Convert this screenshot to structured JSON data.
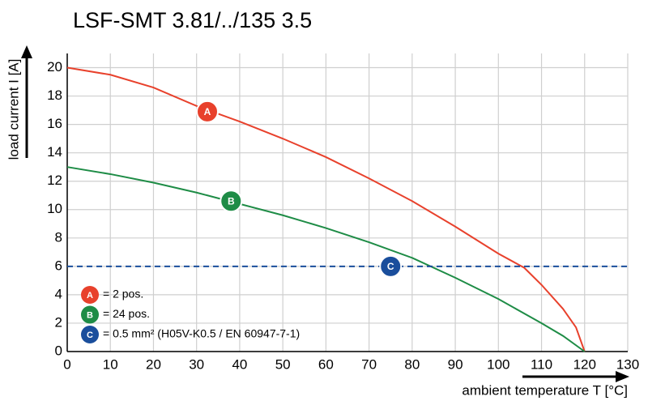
{
  "chart_data": {
    "type": "line",
    "title": "LSF-SMT 3.81/../135 3.5",
    "y_label": "load current I [A]",
    "x_label": "ambient temperature T [°C]",
    "xlim": [
      0,
      130
    ],
    "xticks": [
      0,
      10,
      20,
      30,
      40,
      50,
      60,
      70,
      80,
      90,
      100,
      110,
      120,
      130
    ],
    "ylim": [
      0,
      21
    ],
    "yticks": [
      0,
      2,
      4,
      6,
      8,
      10,
      12,
      14,
      16,
      18,
      20
    ],
    "grid": true,
    "series": [
      {
        "name": "= 2 pos.",
        "marker": "A",
        "color": "#e8412c",
        "dashed": false,
        "x": [
          0,
          10,
          20,
          30,
          40,
          50,
          60,
          70,
          80,
          90,
          100,
          106,
          110,
          115,
          118,
          120
        ],
        "values": [
          20,
          19.5,
          18.6,
          17.3,
          16.2,
          15.0,
          13.7,
          12.2,
          10.6,
          8.8,
          6.9,
          5.9,
          4.7,
          3.0,
          1.7,
          0
        ],
        "marker_x": 32.5,
        "marker_y": 16.9
      },
      {
        "name": "= 24 pos.",
        "marker": "B",
        "color": "#1e8c46",
        "dashed": false,
        "x": [
          0,
          10,
          20,
          30,
          40,
          50,
          60,
          70,
          80,
          90,
          100,
          110,
          115,
          120
        ],
        "values": [
          13,
          12.5,
          11.9,
          11.2,
          10.4,
          9.6,
          8.7,
          7.7,
          6.6,
          5.2,
          3.7,
          2.0,
          1.1,
          0
        ],
        "marker_x": 38,
        "marker_y": 10.6
      },
      {
        "name": "= 0.5 mm² (H05V-K0.5 / EN 60947-7-1)",
        "marker": "C",
        "color": "#1a4e9c",
        "dashed": true,
        "x": [
          0,
          130
        ],
        "values": [
          6,
          6
        ],
        "marker_x": 75,
        "marker_y": 6
      }
    ]
  }
}
